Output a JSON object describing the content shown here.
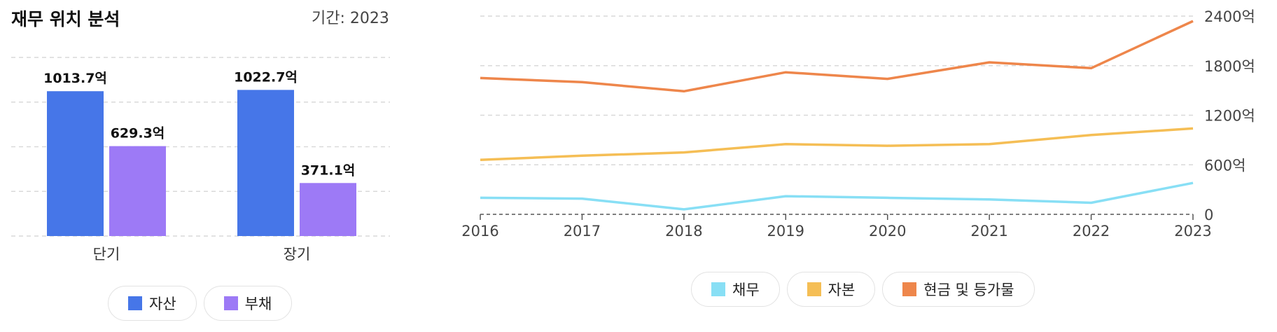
{
  "header": {
    "title": "재무 위치 분석",
    "period": "기간: 2023"
  },
  "colors": {
    "asset": "#4676e8",
    "liability": "#9d7af6",
    "debt": "#88dff5",
    "equity": "#f5be55",
    "cash": "#ee864b"
  },
  "chart_data": [
    {
      "type": "bar",
      "categories": [
        "단기",
        "장기"
      ],
      "series": [
        {
          "name": "자산",
          "values": [
            1013.7,
            1022.7
          ],
          "labels": [
            "1013.7억",
            "1022.7억"
          ]
        },
        {
          "name": "부채",
          "values": [
            629.3,
            371.1
          ],
          "labels": [
            "629.3억",
            "371.1억"
          ]
        }
      ],
      "ylim": [
        0,
        1250
      ],
      "grid": true,
      "legend": "bottom"
    },
    {
      "type": "line",
      "x": [
        "2016",
        "2017",
        "2018",
        "2019",
        "2020",
        "2021",
        "2022",
        "2023"
      ],
      "series": [
        {
          "name": "채무",
          "values": [
            200,
            190,
            60,
            220,
            200,
            180,
            140,
            380
          ]
        },
        {
          "name": "자본",
          "values": [
            660,
            710,
            750,
            850,
            830,
            850,
            960,
            1040
          ]
        },
        {
          "name": "현금 및 등가물",
          "values": [
            1650,
            1600,
            1490,
            1720,
            1640,
            1840,
            1770,
            2340
          ]
        }
      ],
      "yticks": [
        "0",
        "600억",
        "1200억",
        "1800억",
        "2400억"
      ],
      "ylim": [
        0,
        2400
      ],
      "grid": true,
      "legend": "bottom"
    }
  ]
}
